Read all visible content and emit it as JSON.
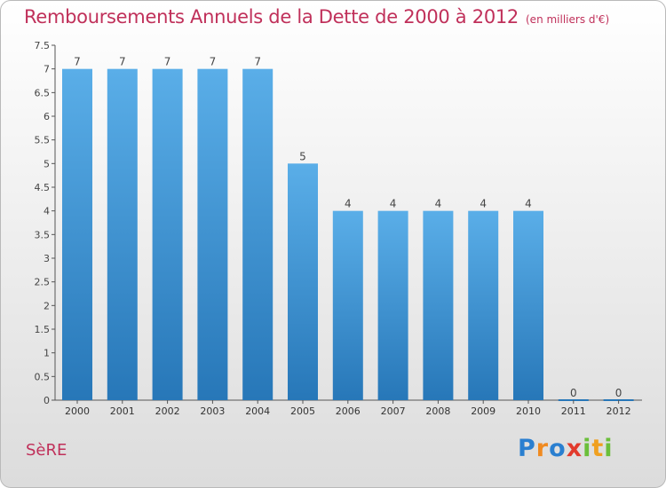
{
  "title": "Remboursements Annuels de la Dette de 2000 à 2012",
  "unit": "(en milliers d'€)",
  "commune": "SèRE",
  "logo_text": "Proxiti",
  "colors": {
    "title": "#c0305a",
    "bar_top": "#5aaee8",
    "bar_bottom": "#2777b8"
  },
  "chart_data": {
    "type": "bar",
    "title": "Remboursements Annuels de la Dette de 2000 à 2012",
    "xlabel": "",
    "ylabel": "",
    "ylim": [
      0,
      7.5
    ],
    "grid": false,
    "yticks": [
      0,
      0.5,
      1,
      1.5,
      2,
      2.5,
      3,
      3.5,
      4,
      4.5,
      5,
      5.5,
      6,
      6.5,
      7,
      7.5
    ],
    "ytick_labels": [
      "0",
      "0.5",
      "1",
      "1.5",
      "2",
      "2.5",
      "3",
      "3.5",
      "4",
      "4.5",
      "5",
      "5.5",
      "6",
      "6.5",
      "7",
      "7.5"
    ],
    "categories": [
      "2000",
      "2001",
      "2002",
      "2003",
      "2004",
      "2005",
      "2006",
      "2007",
      "2008",
      "2009",
      "2010",
      "2011",
      "2012"
    ],
    "values": [
      7,
      7,
      7,
      7,
      7,
      5,
      4,
      4,
      4,
      4,
      4,
      0,
      0
    ],
    "data_labels": [
      "7",
      "7",
      "7",
      "7",
      "7",
      "5",
      "4",
      "4",
      "4",
      "4",
      "4",
      "0",
      "0"
    ]
  }
}
